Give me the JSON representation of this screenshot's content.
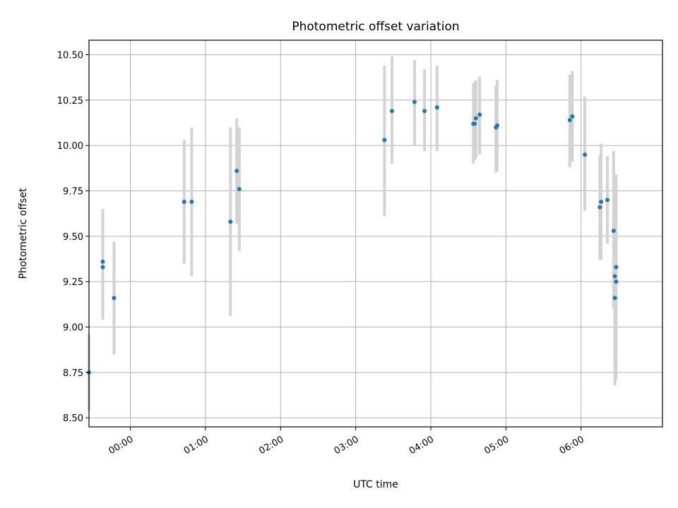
{
  "chart_data": {
    "type": "scatter",
    "title": "Photometric offset variation",
    "xlabel": "UTC time",
    "ylabel": "Photometric offset",
    "x_unit": "time (HH:MM UTC)",
    "xlim": [
      "-00:33",
      "07:05"
    ],
    "ylim": [
      8.45,
      10.58
    ],
    "grid": true,
    "x_ticks": [
      "00:00",
      "01:00",
      "02:00",
      "03:00",
      "04:00",
      "05:00",
      "06:00"
    ],
    "y_ticks": [
      "8.50",
      "8.75",
      "9.00",
      "9.25",
      "9.50",
      "9.75",
      "10.00",
      "10.25",
      "10.50"
    ],
    "point_color": "#1f77b4",
    "errorbar_color": "#d3d3d3",
    "points": [
      {
        "x": "-00:33",
        "y": 8.75,
        "ymin": 8.54,
        "ymax": 8.96
      },
      {
        "x": "-00:22",
        "y": 9.36,
        "ymin": 9.08,
        "ymax": 9.65
      },
      {
        "x": "-00:22",
        "y": 9.33,
        "ymin": 9.04,
        "ymax": 9.62
      },
      {
        "x": "-00:13",
        "y": 9.16,
        "ymin": 8.85,
        "ymax": 9.47
      },
      {
        "x": "00:43",
        "y": 9.69,
        "ymin": 9.35,
        "ymax": 10.03
      },
      {
        "x": "00:49",
        "y": 9.69,
        "ymin": 9.28,
        "ymax": 10.1
      },
      {
        "x": "01:20",
        "y": 9.58,
        "ymin": 9.06,
        "ymax": 10.1
      },
      {
        "x": "01:25",
        "y": 9.86,
        "ymin": 9.57,
        "ymax": 10.15
      },
      {
        "x": "01:27",
        "y": 9.76,
        "ymin": 9.42,
        "ymax": 10.1
      },
      {
        "x": "03:23",
        "y": 10.03,
        "ymin": 9.61,
        "ymax": 10.44
      },
      {
        "x": "03:29",
        "y": 10.19,
        "ymin": 9.9,
        "ymax": 10.49
      },
      {
        "x": "03:47",
        "y": 10.24,
        "ymin": 10.0,
        "ymax": 10.47
      },
      {
        "x": "03:55",
        "y": 10.19,
        "ymin": 9.97,
        "ymax": 10.42
      },
      {
        "x": "04:05",
        "y": 10.21,
        "ymin": 9.97,
        "ymax": 10.44
      },
      {
        "x": "04:34",
        "y": 10.12,
        "ymin": 9.9,
        "ymax": 10.34
      },
      {
        "x": "04:35",
        "y": 10.12,
        "ymin": 9.92,
        "ymax": 10.35
      },
      {
        "x": "04:36",
        "y": 10.15,
        "ymin": 9.93,
        "ymax": 10.36
      },
      {
        "x": "04:39",
        "y": 10.17,
        "ymin": 9.95,
        "ymax": 10.38
      },
      {
        "x": "04:52",
        "y": 10.1,
        "ymin": 9.85,
        "ymax": 10.33
      },
      {
        "x": "04:53",
        "y": 10.11,
        "ymin": 9.86,
        "ymax": 10.36
      },
      {
        "x": "05:51",
        "y": 10.14,
        "ymin": 9.88,
        "ymax": 10.39
      },
      {
        "x": "05:53",
        "y": 10.16,
        "ymin": 9.91,
        "ymax": 10.41
      },
      {
        "x": "06:03",
        "y": 9.95,
        "ymin": 9.64,
        "ymax": 10.27
      },
      {
        "x": "06:15",
        "y": 9.66,
        "ymin": 9.37,
        "ymax": 9.95
      },
      {
        "x": "06:16",
        "y": 9.69,
        "ymin": 9.37,
        "ymax": 10.01
      },
      {
        "x": "06:21",
        "y": 9.7,
        "ymin": 9.46,
        "ymax": 9.94
      },
      {
        "x": "06:26",
        "y": 9.53,
        "ymin": 9.1,
        "ymax": 9.97
      },
      {
        "x": "06:27",
        "y": 9.16,
        "ymin": 8.68,
        "ymax": 9.64
      },
      {
        "x": "06:27",
        "y": 9.28,
        "ymin": 8.8,
        "ymax": 9.76
      },
      {
        "x": "06:28",
        "y": 9.33,
        "ymin": 8.86,
        "ymax": 9.84
      },
      {
        "x": "06:28",
        "y": 9.25,
        "ymin": 8.71,
        "ymax": 9.79
      }
    ]
  }
}
